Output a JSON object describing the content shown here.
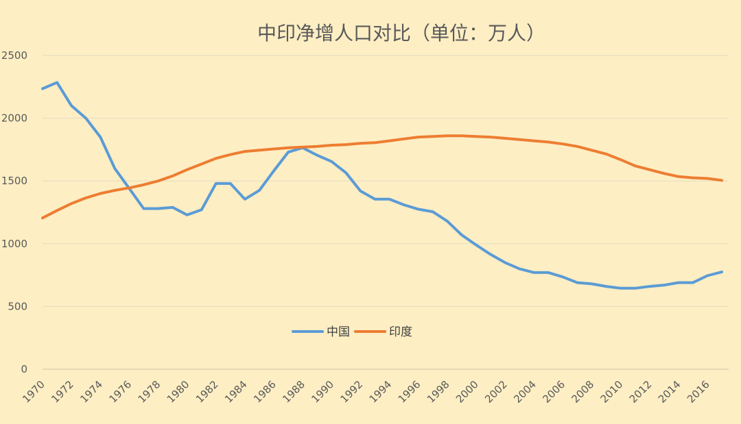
{
  "chart_data": {
    "type": "line",
    "title": "中印净增人口对比（单位：万人）",
    "xlabel": "",
    "ylabel": "",
    "x": [
      1970,
      1971,
      1972,
      1973,
      1974,
      1975,
      1976,
      1977,
      1978,
      1979,
      1980,
      1981,
      1982,
      1983,
      1984,
      1985,
      1986,
      1987,
      1988,
      1989,
      1990,
      1991,
      1992,
      1993,
      1994,
      1995,
      1996,
      1997,
      1998,
      1999,
      2000,
      2001,
      2002,
      2003,
      2004,
      2005,
      2006,
      2007,
      2008,
      2009,
      2010,
      2011,
      2012,
      2013,
      2014,
      2015,
      2016,
      2017
    ],
    "x_tick_labels": [
      "1970",
      "1972",
      "1974",
      "1976",
      "1978",
      "1980",
      "1982",
      "1984",
      "1986",
      "1988",
      "1990",
      "1992",
      "1994",
      "1996",
      "1998",
      "2000",
      "2002",
      "2004",
      "2006",
      "2008",
      "2010",
      "2012",
      "2014",
      "2016"
    ],
    "ylim": [
      0,
      2500
    ],
    "y_ticks": [
      0,
      500,
      1000,
      1500,
      2000,
      2500
    ],
    "y_tick_labels": [
      "0",
      "500",
      "1000",
      "1500",
      "2000",
      "2500"
    ],
    "grid": "horizontal",
    "legend_position": "center",
    "series": [
      {
        "name": "中国",
        "color": "#5b9bd5",
        "values": [
          2235,
          2285,
          2100,
          2000,
          1850,
          1600,
          1440,
          1280,
          1280,
          1290,
          1230,
          1270,
          1480,
          1480,
          1355,
          1425,
          1580,
          1730,
          1765,
          1705,
          1655,
          1565,
          1420,
          1355,
          1355,
          1310,
          1275,
          1255,
          1180,
          1070,
          990,
          915,
          850,
          800,
          770,
          770,
          735,
          690,
          680,
          660,
          645,
          645,
          660,
          670,
          690,
          690,
          745,
          775
        ]
      },
      {
        "name": "印度",
        "color": "#ed7d31",
        "values": [
          1205,
          1265,
          1320,
          1365,
          1400,
          1425,
          1445,
          1470,
          1500,
          1540,
          1590,
          1635,
          1680,
          1710,
          1735,
          1745,
          1755,
          1765,
          1770,
          1775,
          1785,
          1790,
          1800,
          1805,
          1820,
          1835,
          1850,
          1855,
          1860,
          1860,
          1855,
          1850,
          1840,
          1830,
          1820,
          1810,
          1795,
          1775,
          1745,
          1715,
          1670,
          1620,
          1590,
          1560,
          1535,
          1525,
          1520,
          1505
        ]
      }
    ]
  }
}
